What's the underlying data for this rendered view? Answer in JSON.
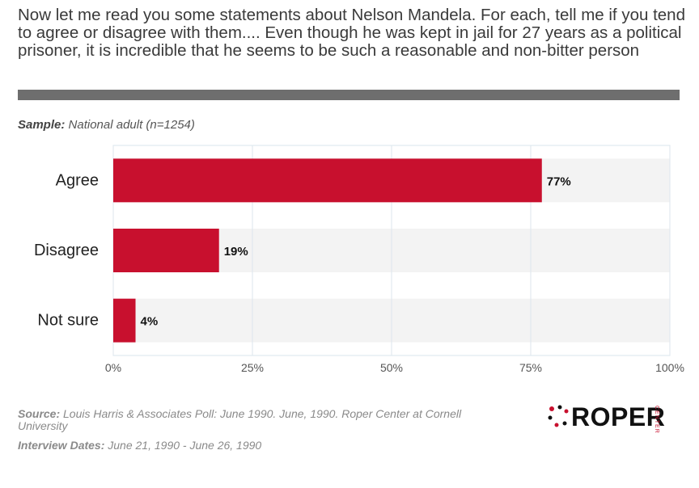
{
  "title": "Now let me read you some statements about Nelson Mandela. For each, tell me if you tend to agree or disagree with them.... Even though he was kept in jail for 27 years as a political prisoner, it is incredible that he seems to be such a reasonable and non-bitter person",
  "sample": {
    "label": "Sample:",
    "value": "National adult (n=1254)"
  },
  "chart_data": {
    "type": "bar",
    "orientation": "horizontal",
    "categories": [
      "Agree",
      "Disagree",
      "Not sure"
    ],
    "values": [
      77,
      19,
      4
    ],
    "data_labels": [
      "77%",
      "19%",
      "4%"
    ],
    "x_ticks": [
      "0%",
      "25%",
      "50%",
      "75%",
      "100%"
    ],
    "xlim": [
      0,
      100
    ],
    "grid": true,
    "bar_color": "#c8102e",
    "band_color": "#f3f3f3"
  },
  "footer": {
    "source_label": "Source:",
    "source_text": "Louis Harris & Associates Poll: June 1990. June, 1990. Roper Center at Cornell University",
    "dates_label": "Interview Dates:",
    "dates_text": "June 21, 1990 - June 26, 1990"
  },
  "logo": {
    "word": "ROPER",
    "sub": "CENTER",
    "accent": "#c8102e"
  }
}
